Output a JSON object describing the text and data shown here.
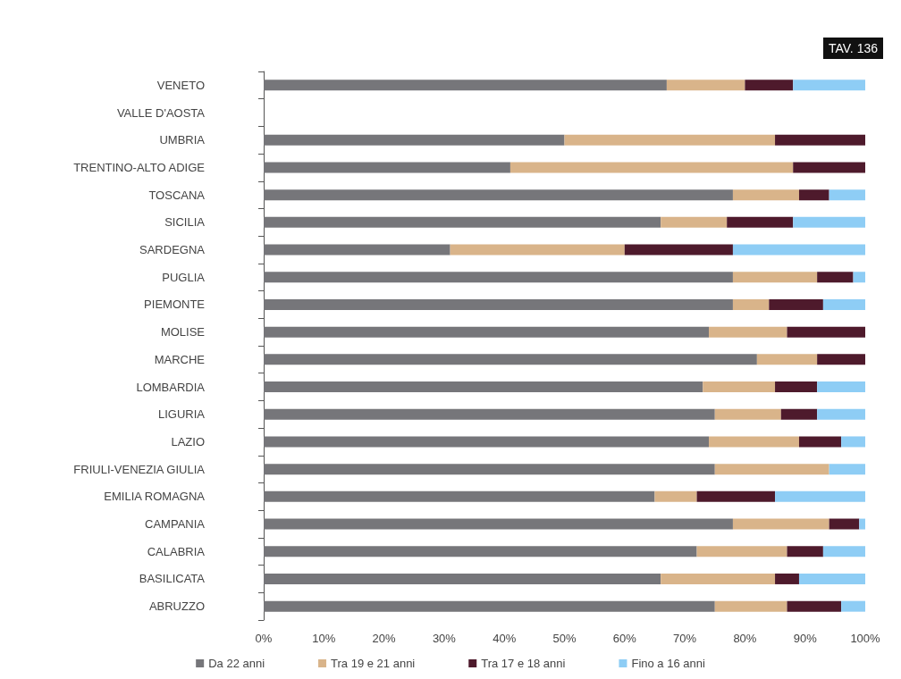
{
  "chart_data": {
    "type": "bar",
    "orientation": "horizontal",
    "stacked": true,
    "annotations": [
      "TAV. 136"
    ],
    "categories": [
      "VENETO",
      "VALLE D'AOSTA",
      "UMBRIA",
      "TRENTINO-ALTO ADIGE",
      "TOSCANA",
      "SICILIA",
      "SARDEGNA",
      "PUGLIA",
      "PIEMONTE",
      "MOLISE",
      "MARCHE",
      "LOMBARDIA",
      "LIGURIA",
      "LAZIO",
      "FRIULI-VENEZIA GIULIA",
      "EMILIA ROMAGNA",
      "CAMPANIA",
      "CALABRIA",
      "BASILICATA",
      "ABRUZZO"
    ],
    "series": [
      {
        "name": "Da 22 anni",
        "color": "#76767a",
        "values": [
          67,
          null,
          50,
          41,
          78,
          66,
          31,
          78,
          78,
          74,
          82,
          73,
          75,
          74,
          75,
          65,
          78,
          72,
          66,
          75
        ]
      },
      {
        "name": "Tra 19 e 21 anni",
        "color": "#d9b48a",
        "values": [
          13,
          null,
          35,
          47,
          11,
          11,
          29,
          14,
          6,
          13,
          10,
          12,
          11,
          15,
          19,
          7,
          16,
          15,
          19,
          12
        ]
      },
      {
        "name": "Tra 17 e 18 anni",
        "color": "#4e1a2c",
        "values": [
          8,
          null,
          15,
          12,
          5,
          11,
          18,
          6,
          9,
          13,
          8,
          7,
          6,
          7,
          0,
          13,
          5,
          6,
          4,
          9
        ]
      },
      {
        "name": "Fino a 16 anni",
        "color": "#8ecdf5",
        "values": [
          12,
          null,
          0,
          0,
          6,
          12,
          22,
          2,
          7,
          0,
          0,
          8,
          8,
          4,
          6,
          15,
          1,
          7,
          11,
          4
        ]
      }
    ],
    "xlim": [
      0,
      100
    ],
    "xticks": [
      {
        "value": 0,
        "label": "0%"
      },
      {
        "value": 10,
        "label": "10%"
      },
      {
        "value": 20,
        "label": "20%"
      },
      {
        "value": 30,
        "label": "30%"
      },
      {
        "value": 40,
        "label": "40%"
      },
      {
        "value": 50,
        "label": "50%"
      },
      {
        "value": 60,
        "label": "60%"
      },
      {
        "value": 70,
        "label": "70%"
      },
      {
        "value": 80,
        "label": "80%"
      },
      {
        "value": 90,
        "label": "90%"
      },
      {
        "value": 100,
        "label": "100%"
      }
    ],
    "grid": false,
    "legend": "bottom"
  }
}
